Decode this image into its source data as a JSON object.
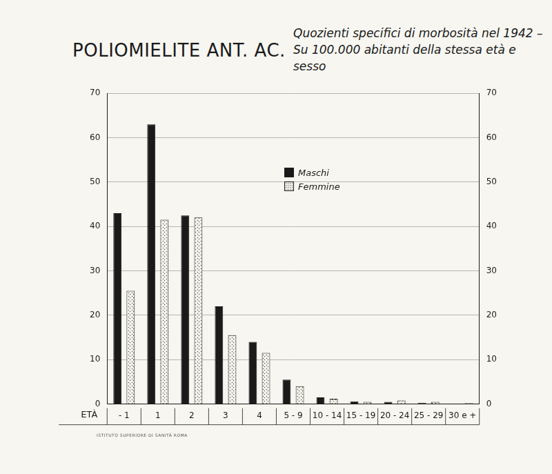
{
  "chart_data": {
    "type": "bar",
    "title": "POLIOMIELITE ANT. AC.",
    "subtitle": "Quozienti specifici di morbosità nel 1942 – Su 100.000 abitanti della stessa età e sesso",
    "x_label": "ETÀ",
    "annotations": [
      "ISTITUTO SUPERIORE DI SANITÀ ROMA"
    ],
    "categories": [
      "- 1",
      "1",
      "2",
      "3",
      "4",
      "5 - 9",
      "10 - 14",
      "15 - 19",
      "20 - 24",
      "25 - 29",
      "30 e +"
    ],
    "series": [
      {
        "name": "Maschi",
        "color": "#1a1a1a",
        "values": [
          43,
          63,
          42.5,
          22,
          14,
          5.5,
          1.5,
          0.6,
          0.5,
          0.3,
          0.1
        ]
      },
      {
        "name": "Femmine",
        "color": "#f0efe8",
        "values": [
          25.5,
          41.5,
          42,
          15.5,
          11.5,
          4,
          1.2,
          0.5,
          0.8,
          0.5,
          0.2
        ]
      }
    ],
    "ylim": [
      0,
      70
    ],
    "yticks": [
      0,
      10,
      20,
      30,
      40,
      50,
      60,
      70
    ],
    "y2lim": [
      0,
      70
    ],
    "y2ticks": [
      0,
      10,
      20,
      30,
      40,
      50,
      60,
      70
    ],
    "grid": true,
    "legend": "center"
  }
}
